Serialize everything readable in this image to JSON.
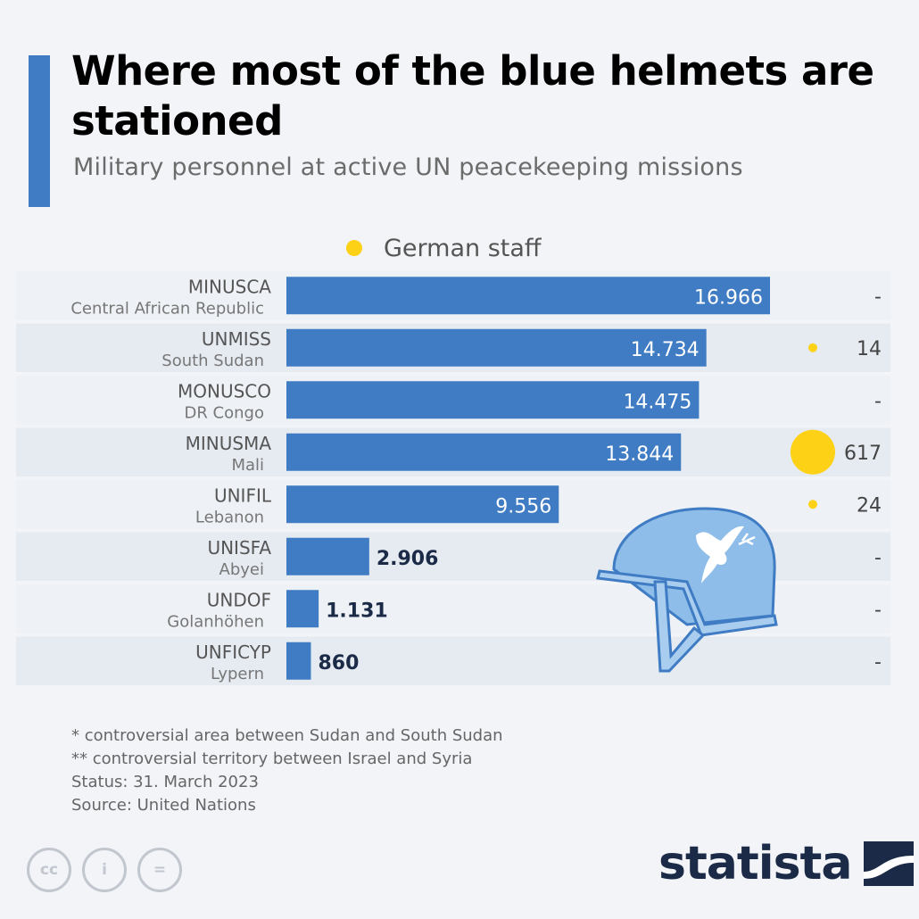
{
  "title": "Where most of the blue helmets are stationed",
  "subtitle": "Military personnel at active UN peacekeeping missions",
  "legend": {
    "label": "German staff",
    "color": "#fcd116"
  },
  "colors": {
    "bar": "#3f7cc4",
    "german": "#fcd116",
    "row_band": "#e6ebf1"
  },
  "chart_data": {
    "type": "bar",
    "orientation": "horizontal",
    "categories": [
      "MINUSCA",
      "UNMISS",
      "MONUSCO",
      "MINUSMA",
      "UNIFIL",
      "UNISFA",
      "UNDOF",
      "UNFICYP"
    ],
    "category_sublabels": [
      "Central African Republic",
      "South Sudan",
      "DR Congo",
      "Mali",
      "Lebanon",
      "Abyei",
      "Golanhöhen",
      "Lypern"
    ],
    "series": [
      {
        "values": [
          16966,
          14734,
          14475,
          13844,
          9556,
          2906,
          1131,
          860
        ],
        "labels": [
          "16.966",
          "14.734",
          "14.475",
          "13.844",
          "9.556",
          "2.906",
          "1.131",
          "860"
        ]
      },
      {
        "name": "German staff",
        "values": [
          null,
          14,
          null,
          617,
          24,
          null,
          null,
          null
        ],
        "labels": [
          "-",
          "14",
          "-",
          "617",
          "24",
          "-",
          "-",
          "-"
        ]
      }
    ],
    "xlim": [
      0,
      16966
    ]
  },
  "footnotes": [
    "* controversial area between Sudan and South Sudan",
    "** controversial territory between Israel and Syria",
    "Status: 31. March 2023",
    "Source: United Nations"
  ],
  "cc_icons": [
    {
      "icon": "cc-icon",
      "glyph": "cc"
    },
    {
      "icon": "person-icon",
      "glyph": "i"
    },
    {
      "icon": "equals-icon",
      "glyph": "="
    }
  ],
  "brand": {
    "name": "statista"
  }
}
